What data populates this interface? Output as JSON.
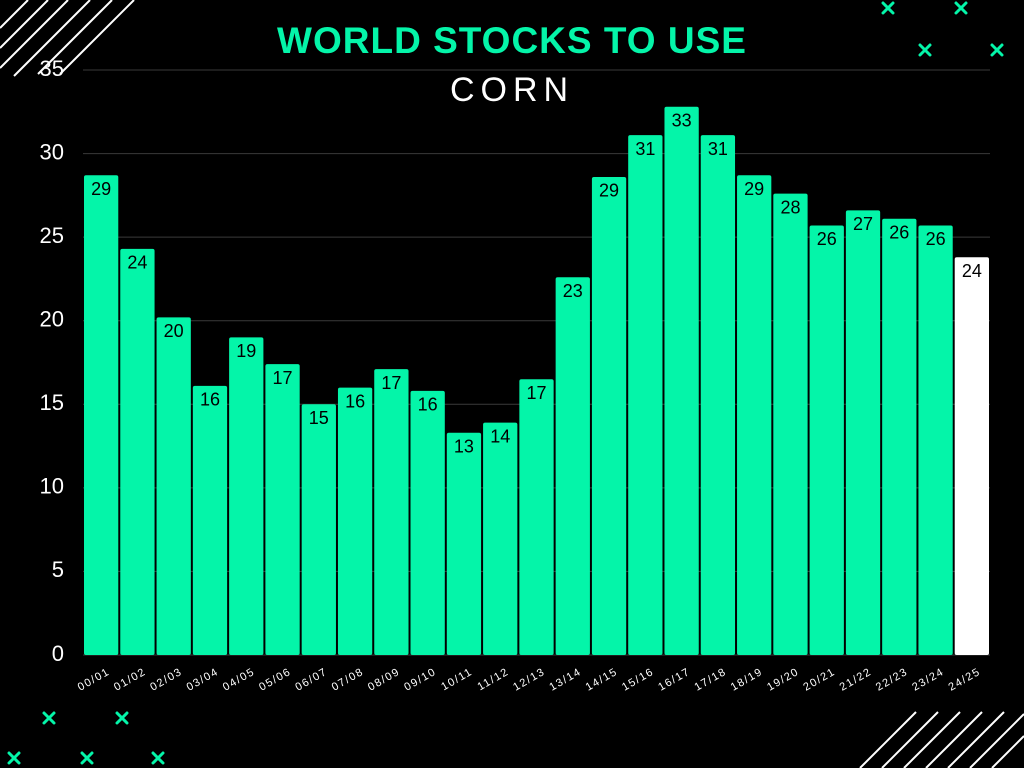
{
  "chart_data": {
    "type": "bar",
    "title": "WORLD STOCKS TO USE",
    "subtitle": "CORN",
    "categories": [
      "00/01",
      "01/02",
      "02/03",
      "03/04",
      "04/05",
      "05/06",
      "06/07",
      "07/08",
      "08/09",
      "09/10",
      "10/11",
      "11/12",
      "12/13",
      "13/14",
      "14/15",
      "15/16",
      "16/17",
      "17/18",
      "18/19",
      "19/20",
      "20/21",
      "21/22",
      "22/23",
      "23/24",
      "24/25"
    ],
    "values": [
      28.7,
      24.3,
      20.2,
      16.1,
      19.0,
      17.4,
      15.0,
      16.0,
      17.1,
      15.8,
      13.3,
      13.9,
      16.5,
      22.6,
      28.6,
      31.1,
      32.8,
      31.1,
      28.7,
      27.6,
      25.7,
      26.6,
      26.1,
      25.7,
      23.8
    ],
    "value_labels": [
      "29",
      "24",
      "20",
      "16",
      "19",
      "17",
      "15",
      "16",
      "17",
      "16",
      "13",
      "14",
      "17",
      "23",
      "29",
      "31",
      "33",
      "31",
      "29",
      "28",
      "26",
      "27",
      "26",
      "26",
      "24"
    ],
    "colors": [
      "#04f5a9",
      "#04f5a9",
      "#04f5a9",
      "#04f5a9",
      "#04f5a9",
      "#04f5a9",
      "#04f5a9",
      "#04f5a9",
      "#04f5a9",
      "#04f5a9",
      "#04f5a9",
      "#04f5a9",
      "#04f5a9",
      "#04f5a9",
      "#04f5a9",
      "#04f5a9",
      "#04f5a9",
      "#04f5a9",
      "#04f5a9",
      "#04f5a9",
      "#04f5a9",
      "#04f5a9",
      "#04f5a9",
      "#04f5a9",
      "#ffffff"
    ],
    "ylim": [
      0,
      35
    ],
    "yticks": [
      0,
      5,
      10,
      15,
      20,
      25,
      30,
      35
    ],
    "grid": true
  }
}
